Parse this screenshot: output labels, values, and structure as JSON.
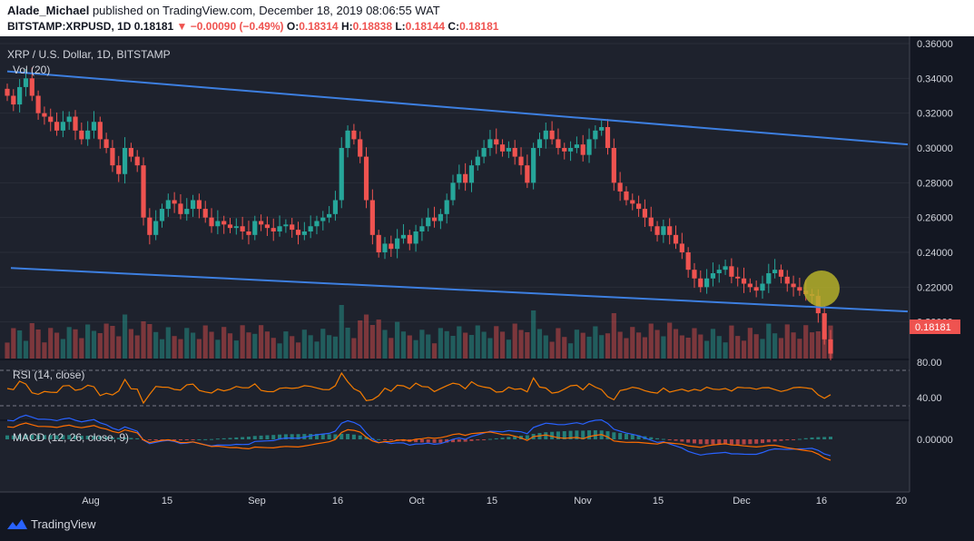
{
  "header": {
    "author": "Alade_Michael",
    "published_text": "published on TradingView.com, December 18, 2019 08:06:55 WAT",
    "symbol": "BITSTAMP:XRPUSD, 1D",
    "last": "0.18181",
    "change": "−0.00090 (−0.49%)",
    "o_label": "O:",
    "o": "0.18314",
    "h_label": "H:",
    "h": "0.18838",
    "l_label": "L:",
    "l": "0.18144",
    "c_label": "C:",
    "c": "0.18181"
  },
  "main_pane": {
    "title": "XRP / U.S. Dollar, 1D, BITSTAMP",
    "vol_label": "Vol (20)",
    "price_ticks": [
      "0.36000",
      "0.34000",
      "0.32000",
      "0.30000",
      "0.28000",
      "0.26000",
      "0.24000",
      "0.22000",
      "0.20000"
    ],
    "current_price_badge": "0.18181"
  },
  "rsi_pane": {
    "title": "RSI (14, close)",
    "ticks": [
      "80.00",
      "40.00"
    ]
  },
  "macd_pane": {
    "title": "MACD (12, 26, close, 9)",
    "ticks": [
      "0.00000"
    ]
  },
  "time_axis": {
    "labels": [
      "Aug",
      "15",
      "Sep",
      "16",
      "Oct",
      "15",
      "Nov",
      "15",
      "Dec",
      "16",
      "20"
    ]
  },
  "footer": {
    "brand": "TradingView"
  },
  "colors": {
    "background": "#131722",
    "up": "#26a69a",
    "down": "#ef5350",
    "channel": "#3d7fe0",
    "rsi": "#f57c00",
    "highlight": "#b5b02a"
  },
  "chart_data": {
    "type": "candlestick",
    "title": "XRP / U.S. Dollar, 1D, BITSTAMP",
    "x_range": [
      "2019-07-20",
      "2019-12-20"
    ],
    "y_range": [
      0.18,
      0.36
    ],
    "close_series": [
      0.33,
      0.325,
      0.335,
      0.34,
      0.33,
      0.32,
      0.318,
      0.315,
      0.31,
      0.315,
      0.318,
      0.31,
      0.305,
      0.31,
      0.315,
      0.305,
      0.3,
      0.29,
      0.285,
      0.3,
      0.295,
      0.29,
      0.26,
      0.25,
      0.258,
      0.265,
      0.27,
      0.268,
      0.262,
      0.265,
      0.27,
      0.265,
      0.26,
      0.255,
      0.258,
      0.256,
      0.254,
      0.255,
      0.252,
      0.25,
      0.258,
      0.256,
      0.254,
      0.252,
      0.255,
      0.256,
      0.253,
      0.25,
      0.252,
      0.255,
      0.258,
      0.26,
      0.262,
      0.27,
      0.3,
      0.31,
      0.305,
      0.295,
      0.27,
      0.25,
      0.24,
      0.245,
      0.242,
      0.248,
      0.25,
      0.245,
      0.252,
      0.255,
      0.26,
      0.258,
      0.262,
      0.27,
      0.28,
      0.285,
      0.28,
      0.29,
      0.295,
      0.3,
      0.305,
      0.302,
      0.298,
      0.3,
      0.295,
      0.29,
      0.28,
      0.3,
      0.305,
      0.31,
      0.305,
      0.3,
      0.298,
      0.3,
      0.302,
      0.296,
      0.305,
      0.31,
      0.312,
      0.3,
      0.28,
      0.275,
      0.27,
      0.268,
      0.265,
      0.26,
      0.255,
      0.25,
      0.255,
      0.25,
      0.245,
      0.24,
      0.23,
      0.225,
      0.22,
      0.225,
      0.228,
      0.23,
      0.232,
      0.226,
      0.225,
      0.222,
      0.22,
      0.218,
      0.222,
      0.228,
      0.23,
      0.226,
      0.222,
      0.22,
      0.218,
      0.216,
      0.215,
      0.205,
      0.19,
      0.1818
    ],
    "channel_upper": {
      "start": 0.344,
      "end": 0.302
    },
    "channel_lower": {
      "start": 0.231,
      "end": 0.206
    }
  }
}
